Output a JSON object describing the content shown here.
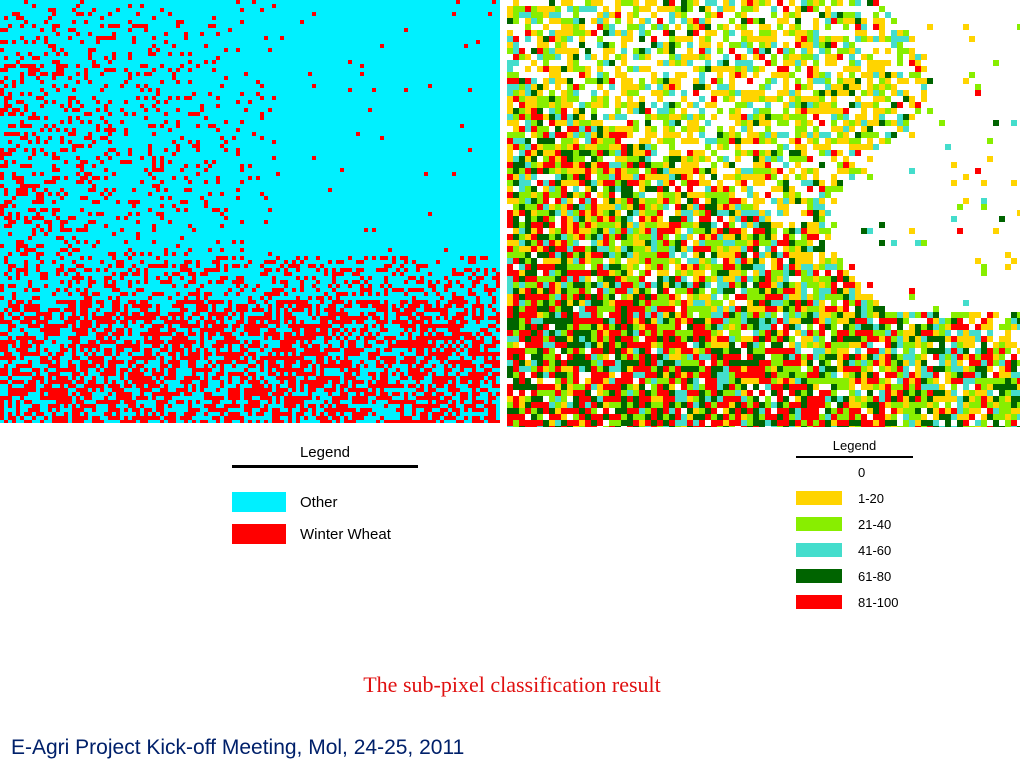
{
  "maps": {
    "classification": {
      "legend": {
        "title": "Legend",
        "items": [
          {
            "label": "Other",
            "color": "#00f0ff"
          },
          {
            "label": "Winter Wheat",
            "color": "#ff0000"
          }
        ]
      }
    },
    "subpixel": {
      "legend": {
        "title": "Legend",
        "items": [
          {
            "label": "0",
            "color": "#ffffff"
          },
          {
            "label": "1-20",
            "color": "#ffd400"
          },
          {
            "label": "21-40",
            "color": "#88ee00"
          },
          {
            "label": "41-60",
            "color": "#44ddcc"
          },
          {
            "label": "61-80",
            "color": "#006400"
          },
          {
            "label": "81-100",
            "color": "#ff0000"
          }
        ]
      }
    }
  },
  "caption": "The sub-pixel classification result",
  "footer": "E-Agri Project Kick-off Meeting, Mol, 24-25, 2011"
}
